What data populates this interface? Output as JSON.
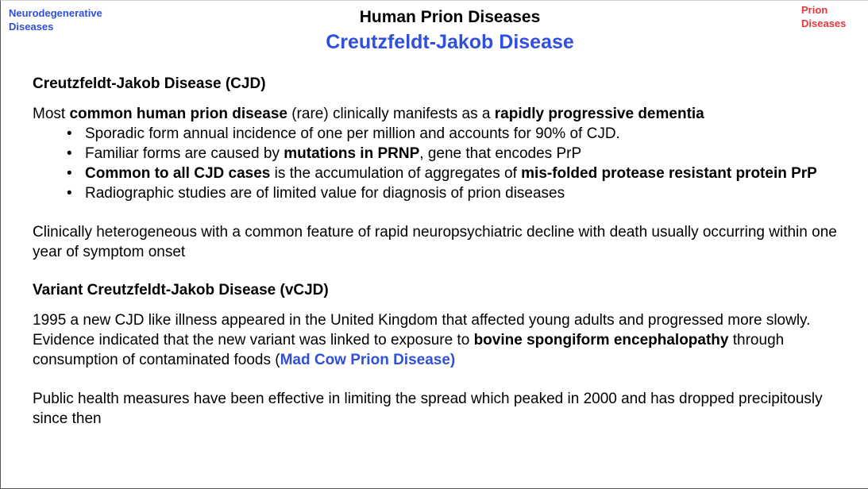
{
  "nav": {
    "left_link": "Neurodegenerative Diseases",
    "right_link": "Prion Diseases",
    "left_color": "#2f4fdc",
    "right_color": "#e8363a"
  },
  "header": {
    "title": "Human Prion Diseases",
    "subtitle": "Creutzfeldt-Jakob Disease"
  },
  "cjd": {
    "heading": "Creutzfeldt-Jakob Disease (CJD)",
    "intro": {
      "t1": "Most ",
      "b1": "common human prion disease",
      "t2": " (rare) clinically manifests as a ",
      "b2": "rapidly progressive dementia"
    },
    "bullets": {
      "b1": {
        "text": "Sporadic form annual incidence of one per million and accounts for 90% of CJD."
      },
      "b2": {
        "t1": "Familiar forms are caused by ",
        "b1": "mutations in PRNP",
        "t2": ", gene that encodes PrP"
      },
      "b3": {
        "b1": "Common to all CJD cases",
        "t1": " is the accumulation of aggregates of ",
        "b2": "mis-folded protease resistant protein PrP"
      },
      "b4": {
        "text": "Radiographic studies are of limited value for diagnosis of prion diseases"
      }
    },
    "clinical": "Clinically heterogeneous with a common feature of rapid neuropsychiatric decline with death usually occurring within one year of symptom onset"
  },
  "vcjd": {
    "heading": "Variant Creutzfeldt-Jakob Disease (vCJD)",
    "para": {
      "t1": "1995 a new CJD like illness appeared in the United Kingdom that affected young adults and progressed more slowly. Evidence indicated that the new variant was linked to exposure to ",
      "b1": "bovine spongiform encephalopathy",
      "t2": " through consumption of contaminated foods (",
      "link": "Mad Cow Prion Disease)"
    },
    "public_health": "Public health measures have been effective in limiting the spread which peaked in 2000 and has dropped precipitously since then"
  }
}
